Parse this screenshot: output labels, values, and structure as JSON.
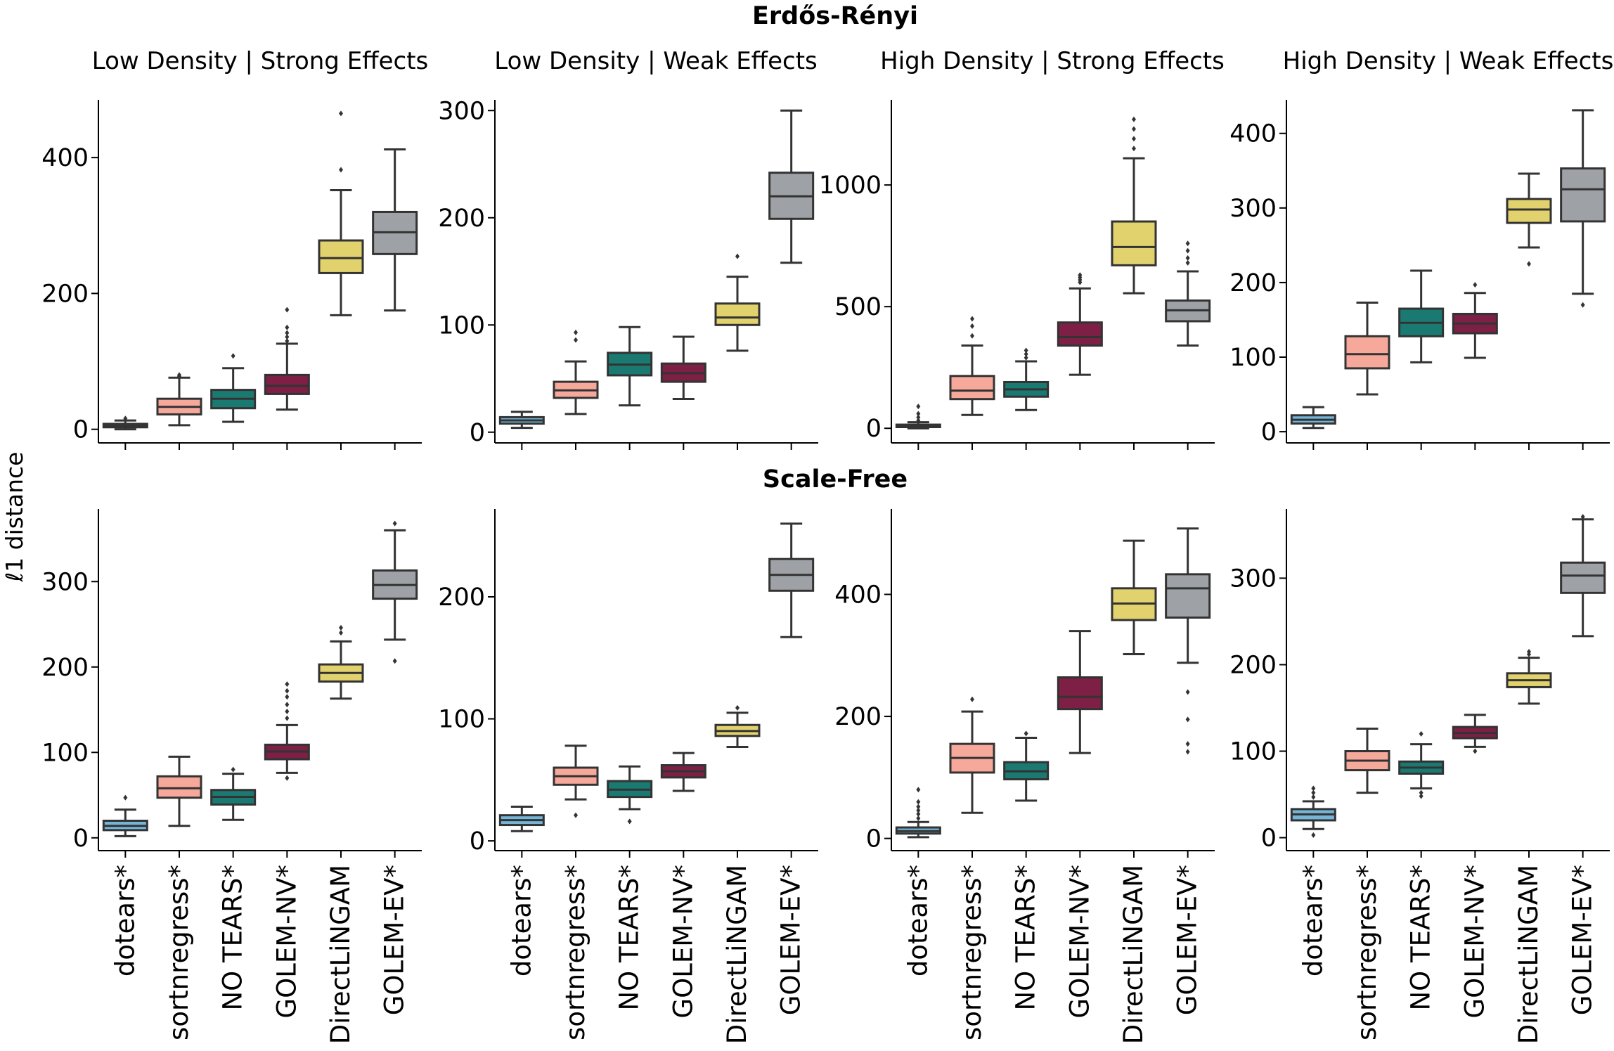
{
  "figure": {
    "ylabel": "ℓ1 distance",
    "row_titles": [
      "Erdős-Rényi",
      "Scale-Free"
    ],
    "column_titles": [
      "Low Density | Strong Effects",
      "Low Density | Weak Effects",
      "High Density | Strong Effects",
      "High Density | Weak Effects"
    ],
    "methods": [
      "dotears*",
      "sortnregress*",
      "NO TEARS*",
      "GOLEM-NV*",
      "DirectLiNGAM",
      "GOLEM-EV*"
    ],
    "colors": [
      "#74b5d8",
      "#f6a99a",
      "#1a7a72",
      "#7e1f45",
      "#e2d26e",
      "#9ea2a6"
    ]
  },
  "chart_data": [
    {
      "type": "box",
      "row": "Erdős-Rényi",
      "title": "Low Density | Strong Effects",
      "ylim": [
        -20,
        485
      ],
      "yticks": [
        0,
        200,
        400
      ],
      "boxes": [
        {
          "q1": 3,
          "median": 5,
          "q3": 8,
          "whislo": 0,
          "whishi": 13,
          "fliers": [
            16
          ]
        },
        {
          "q1": 22,
          "median": 33,
          "q3": 45,
          "whislo": 6,
          "whishi": 76,
          "fliers": [
            78,
            80
          ]
        },
        {
          "q1": 31,
          "median": 45,
          "q3": 58,
          "whislo": 11,
          "whishi": 90,
          "fliers": [
            108
          ]
        },
        {
          "q1": 52,
          "median": 64,
          "q3": 80,
          "whislo": 29,
          "whishi": 126,
          "fliers": [
            130,
            136,
            142,
            150,
            176
          ]
        },
        {
          "q1": 230,
          "median": 252,
          "q3": 278,
          "whislo": 168,
          "whishi": 352,
          "fliers": [
            382,
            465
          ]
        },
        {
          "q1": 258,
          "median": 290,
          "q3": 320,
          "whislo": 175,
          "whishi": 412,
          "fliers": []
        }
      ]
    },
    {
      "type": "box",
      "row": "Erdős-Rényi",
      "title": "Low Density | Weak Effects",
      "ylim": [
        -10,
        310
      ],
      "yticks": [
        0,
        100,
        200,
        300
      ],
      "boxes": [
        {
          "q1": 8,
          "median": 11,
          "q3": 14,
          "whislo": 4,
          "whishi": 19,
          "fliers": []
        },
        {
          "q1": 32,
          "median": 39,
          "q3": 47,
          "whislo": 17,
          "whishi": 66,
          "fliers": [
            86,
            93
          ]
        },
        {
          "q1": 53,
          "median": 63,
          "q3": 74,
          "whislo": 25,
          "whishi": 98,
          "fliers": []
        },
        {
          "q1": 47,
          "median": 55,
          "q3": 64,
          "whislo": 31,
          "whishi": 89,
          "fliers": []
        },
        {
          "q1": 100,
          "median": 107,
          "q3": 120,
          "whislo": 76,
          "whishi": 145,
          "fliers": [
            164
          ]
        },
        {
          "q1": 199,
          "median": 220,
          "q3": 242,
          "whislo": 158,
          "whishi": 300,
          "fliers": []
        }
      ]
    },
    {
      "type": "box",
      "row": "Erdős-Rényi",
      "title": "High Density | Strong Effects",
      "ylim": [
        -60,
        1350
      ],
      "yticks": [
        0,
        500,
        1000
      ],
      "boxes": [
        {
          "q1": 5,
          "median": 10,
          "q3": 15,
          "whislo": 0,
          "whishi": 25,
          "fliers": [
            32,
            45,
            60,
            90
          ]
        },
        {
          "q1": 120,
          "median": 155,
          "q3": 215,
          "whislo": 55,
          "whishi": 340,
          "fliers": [
            380,
            420,
            450
          ]
        },
        {
          "q1": 130,
          "median": 160,
          "q3": 190,
          "whislo": 75,
          "whishi": 275,
          "fliers": [
            290,
            305,
            320
          ]
        },
        {
          "q1": 340,
          "median": 375,
          "q3": 435,
          "whislo": 220,
          "whishi": 575,
          "fliers": [
            600,
            610,
            620,
            630
          ]
        },
        {
          "q1": 670,
          "median": 745,
          "q3": 850,
          "whislo": 555,
          "whishi": 1110,
          "fliers": [
            1150,
            1190,
            1230,
            1270
          ]
        },
        {
          "q1": 440,
          "median": 485,
          "q3": 525,
          "whislo": 340,
          "whishi": 645,
          "fliers": [
            680,
            700,
            730,
            760
          ]
        }
      ]
    },
    {
      "type": "box",
      "row": "Erdős-Rényi",
      "title": "High Density | Weak Effects",
      "ylim": [
        -15,
        445
      ],
      "yticks": [
        0,
        100,
        200,
        300,
        400
      ],
      "boxes": [
        {
          "q1": 11,
          "median": 16,
          "q3": 22,
          "whislo": 5,
          "whishi": 33,
          "fliers": []
        },
        {
          "q1": 85,
          "median": 104,
          "q3": 128,
          "whislo": 50,
          "whishi": 173,
          "fliers": []
        },
        {
          "q1": 128,
          "median": 146,
          "q3": 165,
          "whislo": 93,
          "whishi": 216,
          "fliers": []
        },
        {
          "q1": 132,
          "median": 145,
          "q3": 158,
          "whislo": 99,
          "whishi": 186,
          "fliers": [
            197
          ]
        },
        {
          "q1": 280,
          "median": 298,
          "q3": 312,
          "whislo": 247,
          "whishi": 346,
          "fliers": [
            225
          ]
        },
        {
          "q1": 282,
          "median": 325,
          "q3": 353,
          "whislo": 185,
          "whishi": 431,
          "fliers": [
            170
          ]
        }
      ]
    },
    {
      "type": "box",
      "row": "Scale-Free",
      "title": "",
      "ylim": [
        -15,
        385
      ],
      "yticks": [
        0,
        100,
        200,
        300
      ],
      "boxes": [
        {
          "q1": 9,
          "median": 14,
          "q3": 20,
          "whislo": 2,
          "whishi": 33,
          "fliers": [
            47
          ]
        },
        {
          "q1": 47,
          "median": 58,
          "q3": 72,
          "whislo": 14,
          "whishi": 95,
          "fliers": []
        },
        {
          "q1": 39,
          "median": 48,
          "q3": 56,
          "whislo": 21,
          "whishi": 75,
          "fliers": [
            80
          ]
        },
        {
          "q1": 92,
          "median": 101,
          "q3": 109,
          "whislo": 76,
          "whishi": 132,
          "fliers": [
            70,
            140,
            148,
            156,
            165,
            172,
            180
          ]
        },
        {
          "q1": 183,
          "median": 193,
          "q3": 203,
          "whislo": 163,
          "whishi": 230,
          "fliers": [
            240,
            246
          ]
        },
        {
          "q1": 280,
          "median": 296,
          "q3": 313,
          "whislo": 232,
          "whishi": 360,
          "fliers": [
            207,
            368
          ]
        }
      ]
    },
    {
      "type": "box",
      "row": "Scale-Free",
      "title": "",
      "ylim": [
        -8,
        272
      ],
      "yticks": [
        0,
        100,
        200
      ],
      "boxes": [
        {
          "q1": 13,
          "median": 17,
          "q3": 21,
          "whislo": 8,
          "whishi": 28,
          "fliers": []
        },
        {
          "q1": 46,
          "median": 53,
          "q3": 60,
          "whislo": 34,
          "whishi": 78,
          "fliers": [
            21
          ]
        },
        {
          "q1": 36,
          "median": 42,
          "q3": 49,
          "whislo": 26,
          "whishi": 61,
          "fliers": [
            16
          ]
        },
        {
          "q1": 52,
          "median": 57,
          "q3": 62,
          "whislo": 41,
          "whishi": 72,
          "fliers": []
        },
        {
          "q1": 86,
          "median": 90,
          "q3": 95,
          "whislo": 77,
          "whishi": 105,
          "fliers": [
            109
          ]
        },
        {
          "q1": 205,
          "median": 218,
          "q3": 231,
          "whislo": 167,
          "whishi": 260,
          "fliers": []
        }
      ]
    },
    {
      "type": "box",
      "row": "Scale-Free",
      "title": "",
      "ylim": [
        -20,
        540
      ],
      "yticks": [
        0,
        200,
        400
      ],
      "boxes": [
        {
          "q1": 8,
          "median": 12,
          "q3": 18,
          "whislo": 2,
          "whishi": 27,
          "fliers": [
            33,
            40,
            46,
            52,
            60,
            80
          ]
        },
        {
          "q1": 108,
          "median": 132,
          "q3": 155,
          "whislo": 42,
          "whishi": 208,
          "fliers": [
            228
          ]
        },
        {
          "q1": 97,
          "median": 110,
          "q3": 125,
          "whislo": 62,
          "whishi": 165,
          "fliers": [
            172
          ]
        },
        {
          "q1": 212,
          "median": 232,
          "q3": 264,
          "whislo": 140,
          "whishi": 340,
          "fliers": []
        },
        {
          "q1": 358,
          "median": 385,
          "q3": 410,
          "whislo": 302,
          "whishi": 488,
          "fliers": []
        },
        {
          "q1": 362,
          "median": 410,
          "q3": 433,
          "whislo": 288,
          "whishi": 508,
          "fliers": [
            142,
            155,
            195,
            240
          ]
        }
      ]
    },
    {
      "type": "box",
      "row": "Scale-Free",
      "title": "",
      "ylim": [
        -15,
        380
      ],
      "yticks": [
        0,
        100,
        200,
        300
      ],
      "boxes": [
        {
          "q1": 20,
          "median": 27,
          "q3": 33,
          "whislo": 10,
          "whishi": 42,
          "fliers": [
            3,
            47,
            52,
            57
          ]
        },
        {
          "q1": 78,
          "median": 89,
          "q3": 100,
          "whislo": 52,
          "whishi": 126,
          "fliers": []
        },
        {
          "q1": 74,
          "median": 81,
          "q3": 88,
          "whislo": 57,
          "whishi": 108,
          "fliers": [
            48,
            52,
            120
          ]
        },
        {
          "q1": 115,
          "median": 121,
          "q3": 128,
          "whislo": 105,
          "whishi": 142,
          "fliers": [
            100
          ]
        },
        {
          "q1": 174,
          "median": 182,
          "q3": 190,
          "whislo": 155,
          "whishi": 208,
          "fliers": [
            212,
            215
          ]
        },
        {
          "q1": 283,
          "median": 303,
          "q3": 318,
          "whislo": 233,
          "whishi": 368,
          "fliers": [
            371
          ]
        }
      ]
    }
  ]
}
